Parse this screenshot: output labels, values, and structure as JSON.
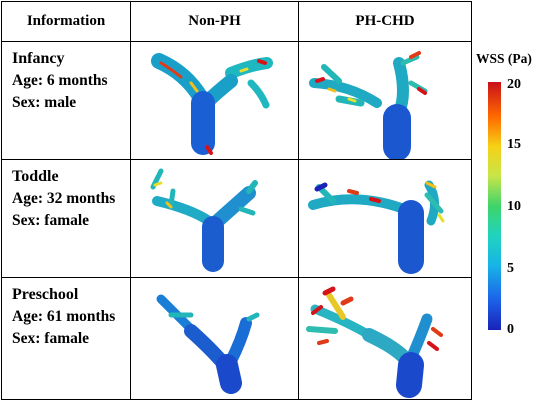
{
  "table": {
    "headers": [
      "Information",
      "Non-PH",
      "PH-CHD"
    ],
    "rows": [
      {
        "stage": "Infancy",
        "age": "Age: 6 months",
        "sex": "Sex: male"
      },
      {
        "stage": "Toddle",
        "age": "Age: 32 months",
        "sex": "Sex: famale"
      },
      {
        "stage": "Preschool",
        "age": "Age: 61 months",
        "sex": "Sex: famale"
      }
    ]
  },
  "legend": {
    "title": "WSS (Pa)",
    "ticks": [
      "20",
      "15",
      "10",
      "5",
      "0"
    ],
    "colors": {
      "high": "#c8101a",
      "mid_high": "#f6d116",
      "mid": "#3fd46a",
      "mid_low": "#21d3bf",
      "low": "#1a22b8"
    }
  }
}
